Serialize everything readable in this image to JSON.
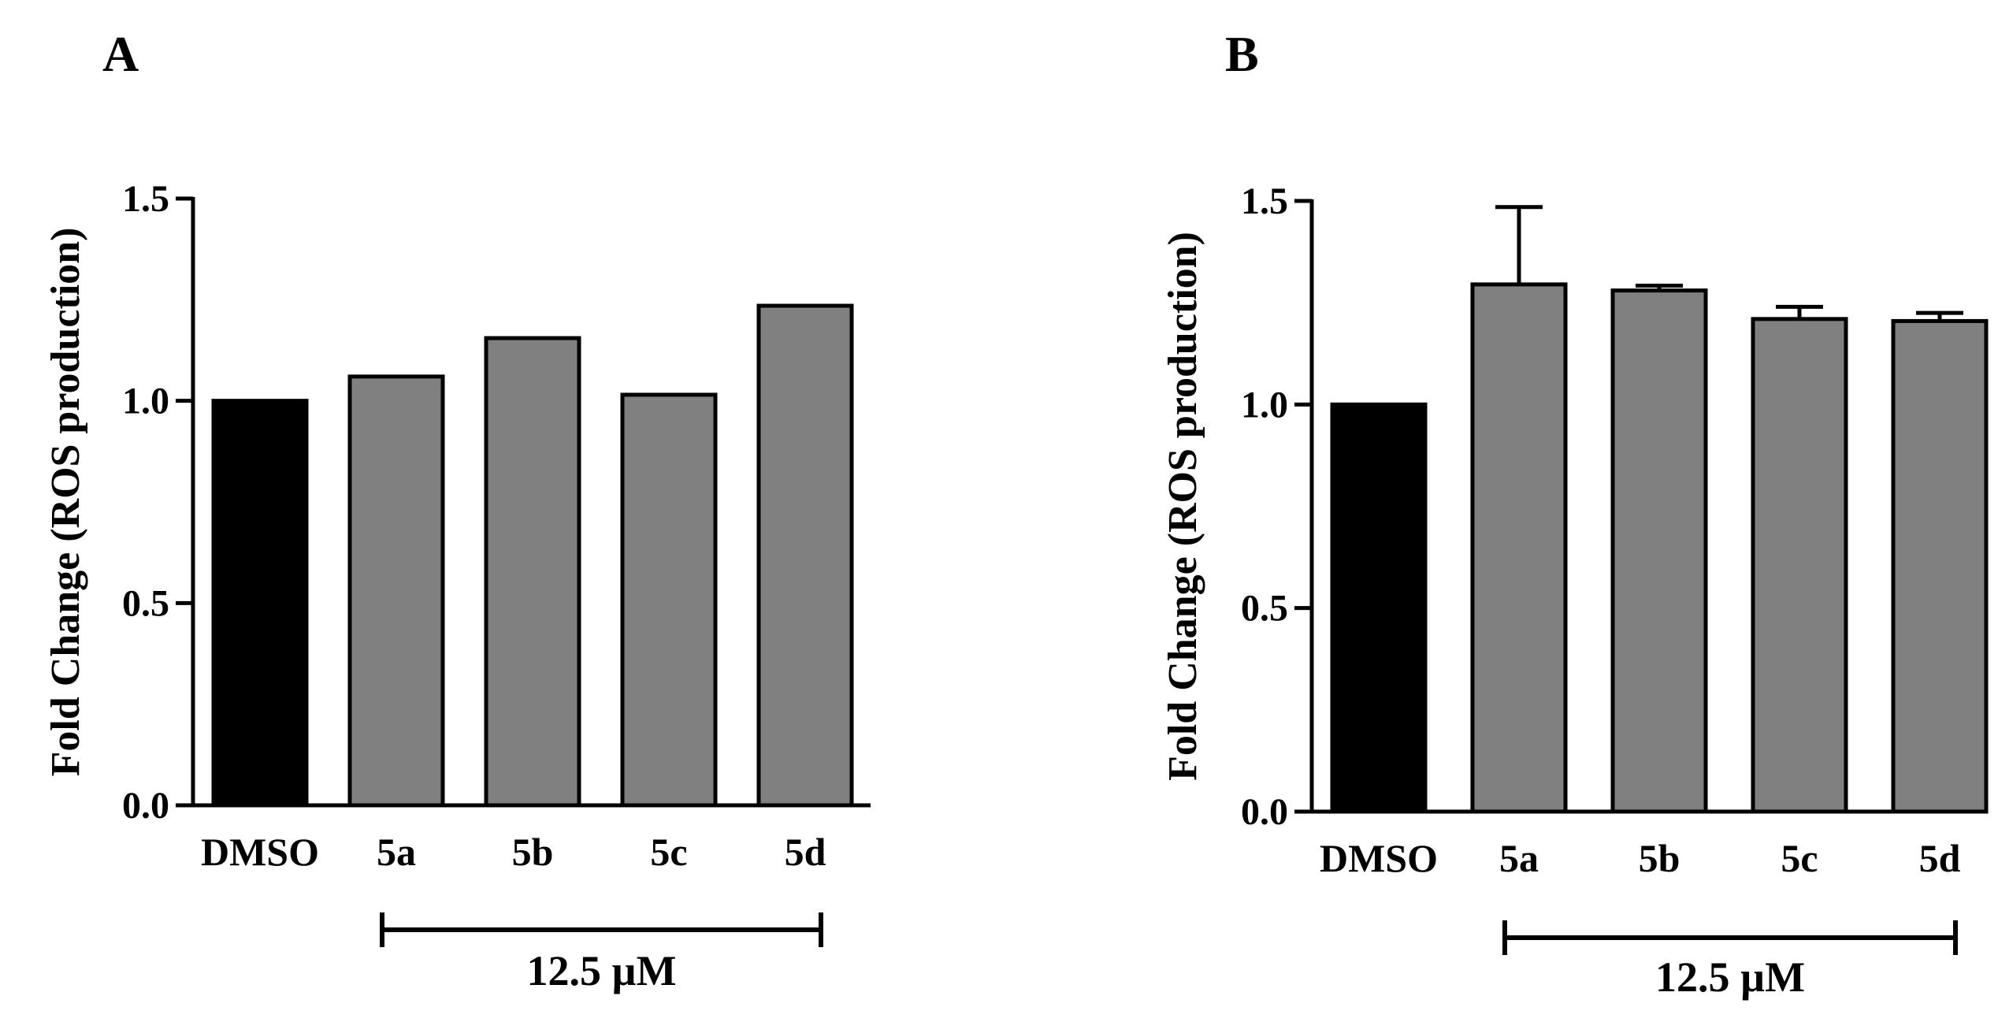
{
  "figure": {
    "conc_label": "12.5 µM"
  },
  "chart_data": [
    {
      "panel": "A",
      "type": "bar",
      "ylabel": "Fold Change (ROS production)",
      "categories": [
        "DMSO",
        "5a",
        "5b",
        "5c",
        "5d"
      ],
      "values": [
        1.0,
        1.06,
        1.155,
        1.015,
        1.235
      ],
      "errors": [
        0,
        0,
        0,
        0,
        0
      ],
      "ylim": [
        0,
        1.5
      ],
      "yticks": [
        "0.0",
        "0.5",
        "1.0",
        "1.5"
      ],
      "colors": [
        "#000000",
        "#808080",
        "#808080",
        "#808080",
        "#808080"
      ],
      "bracket_label": "12.5 µM",
      "bracket_categories": [
        "5a",
        "5d"
      ]
    },
    {
      "panel": "B",
      "type": "bar",
      "ylabel": "Fold Change (ROS production)",
      "categories": [
        "DMSO",
        "5a",
        "5b",
        "5c",
        "5d"
      ],
      "values": [
        1.0,
        1.295,
        1.28,
        1.21,
        1.205
      ],
      "errors": [
        0,
        0.19,
        0.012,
        0.03,
        0.02
      ],
      "ylim": [
        0,
        1.5
      ],
      "yticks": [
        "0.0",
        "0.5",
        "1.0",
        "1.5"
      ],
      "colors": [
        "#000000",
        "#808080",
        "#808080",
        "#808080",
        "#808080"
      ],
      "bracket_label": "12.5 µM",
      "bracket_categories": [
        "5a",
        "5d"
      ]
    }
  ]
}
